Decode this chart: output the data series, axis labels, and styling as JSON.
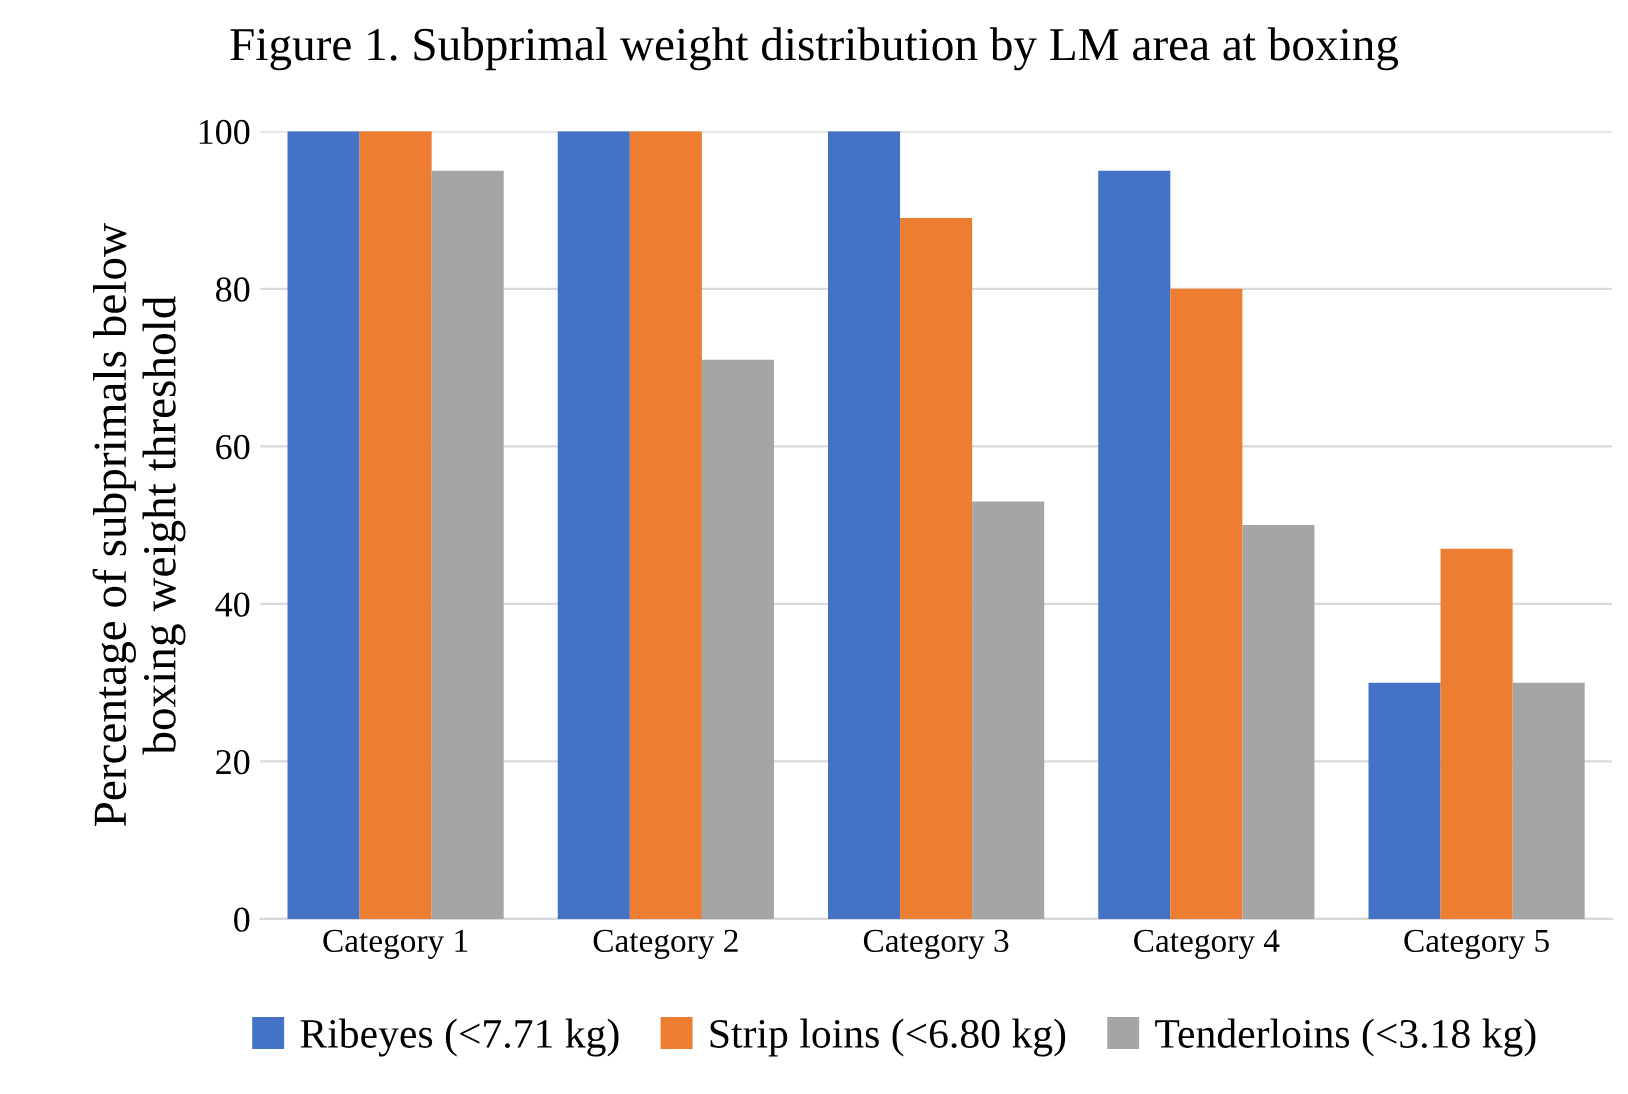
{
  "chart_data": {
    "type": "bar",
    "title": "Figure 1. Subprimal weight distribution by LM area at boxing",
    "ylabel": "Percentage of subprimals below\nboxing weight threshold",
    "categories": [
      "Category 1",
      "Category 2",
      "Category 3",
      "Category 4",
      "Category 5"
    ],
    "series": [
      {
        "name": "Ribeyes (<7.71 kg)",
        "color": "#4472c4",
        "values": [
          100,
          100,
          100,
          95,
          30
        ]
      },
      {
        "name": "Strip loins (<6.80 kg)",
        "color": "#ed7d31",
        "values": [
          100,
          100,
          89,
          80,
          47
        ]
      },
      {
        "name": "Tenderloins (<3.18 kg)",
        "color": "#a5a5a5",
        "values": [
          95,
          71,
          53,
          50,
          30
        ]
      }
    ],
    "ylim": [
      0,
      100
    ],
    "yticks": [
      0,
      20,
      40,
      60,
      80,
      100
    ],
    "grid": "y",
    "legend": "bottom"
  }
}
